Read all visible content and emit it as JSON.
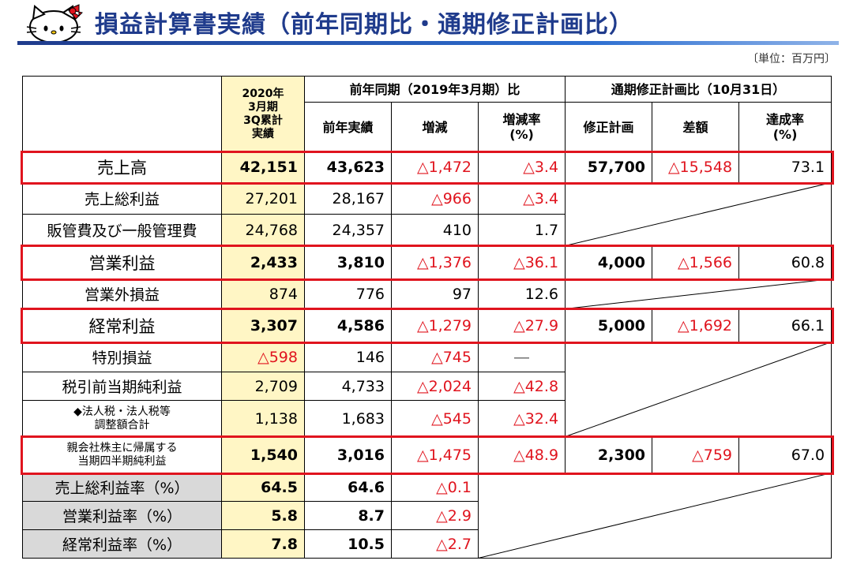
{
  "header": {
    "title": "損益計算書実績（前年同期比・通期修正計画比）",
    "unit": "〔単位：百万円〕"
  },
  "table": {
    "col_current": "2020年\n3月期\n3Q累計\n実績",
    "group_prev": "前年同期（2019年3月期）比",
    "group_plan": "通期修正計画比（10月31日）",
    "sub_prev_actual": "前年実績",
    "sub_change": "増減",
    "sub_change_rate": "増減率\n(%)",
    "sub_plan": "修正計画",
    "sub_diff": "差額",
    "sub_achieve": "達成率\n(%)",
    "rows": [
      {
        "label": "売上高",
        "cur": "42,151",
        "prev": "43,623",
        "chg": "△1,472",
        "rate": "△3.4",
        "plan": "57,700",
        "diff": "△15,548",
        "ach": "73.1"
      },
      {
        "label": "売上総利益",
        "cur": "27,201",
        "prev": "28,167",
        "chg": "△966",
        "rate": "△3.4"
      },
      {
        "label": "販管費及び一般管理費",
        "cur": "24,768",
        "prev": "24,357",
        "chg": "410",
        "rate": "1.7"
      },
      {
        "label": "営業利益",
        "cur": "2,433",
        "prev": "3,810",
        "chg": "△1,376",
        "rate": "△36.1",
        "plan": "4,000",
        "diff": "△1,566",
        "ach": "60.8"
      },
      {
        "label": "営業外損益",
        "cur": "874",
        "prev": "776",
        "chg": "97",
        "rate": "12.6"
      },
      {
        "label": "経常利益",
        "cur": "3,307",
        "prev": "4,586",
        "chg": "△1,279",
        "rate": "△27.9",
        "plan": "5,000",
        "diff": "△1,692",
        "ach": "66.1"
      },
      {
        "label": "特別損益",
        "cur": "△598",
        "prev": "146",
        "chg": "△745",
        "rate": "―"
      },
      {
        "label": "税引前当期純利益",
        "cur": "2,709",
        "prev": "4,733",
        "chg": "△2,024",
        "rate": "△42.8"
      },
      {
        "label": "◆法人税・法人税等\n調整額合計",
        "cur": "1,138",
        "prev": "1,683",
        "chg": "△545",
        "rate": "△32.4"
      },
      {
        "label": "親会社株主に帰属する\n当期四半期純利益",
        "cur": "1,540",
        "prev": "3,016",
        "chg": "△1,475",
        "rate": "△48.9",
        "plan": "2,300",
        "diff": "△759",
        "ach": "67.0"
      },
      {
        "label": "売上総利益率（%）",
        "cur": "64.5",
        "prev": "64.6",
        "chg": "△0.1"
      },
      {
        "label": "営業利益率（%）",
        "cur": "5.8",
        "prev": "8.7",
        "chg": "△2.9"
      },
      {
        "label": "経常利益率（%）",
        "cur": "7.8",
        "prev": "10.5",
        "chg": "△2.7"
      }
    ]
  },
  "logo": {
    "icon": "hello-kitty-icon"
  },
  "colors": {
    "title": "#1f3b8c",
    "highlight": "#e0141e",
    "current_col": "#fff6c5",
    "ratio_rows": "#d9d9d9"
  }
}
